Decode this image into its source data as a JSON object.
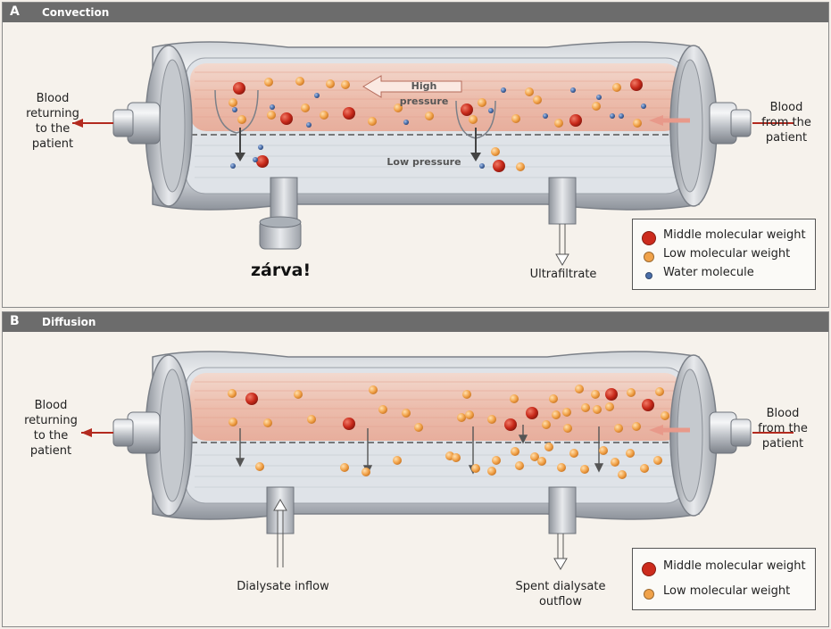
{
  "panel_a": {
    "letter": "A",
    "title": "Convection",
    "label_blood_return": "Blood\nreturning\nto the\npatient",
    "label_blood_from": "Blood\nfrom the\npatient",
    "label_high_pressure": "High pressure",
    "label_low_pressure": "Low pressure",
    "label_closed": "zárva!",
    "label_ultrafiltrate": "Ultrafiltrate",
    "legend": [
      {
        "label": "Middle molecular weight",
        "color": "#cc2b1d"
      },
      {
        "label": "Low molecular weight",
        "color": "#f0a24a"
      },
      {
        "label": "Water molecule",
        "color": "#4a6ea8"
      }
    ]
  },
  "panel_b": {
    "letter": "B",
    "title": "Diffusion",
    "label_blood_return": "Blood\nreturning\nto the\npatient",
    "label_blood_from": "Blood\nfrom the\npatient",
    "label_dialysate_inflow": "Dialysate inflow",
    "label_spent_outflow": "Spent dialysate\noutflow",
    "legend": [
      {
        "label": "Middle molecular weight",
        "color": "#cc2b1d"
      },
      {
        "label": "Low molecular weight",
        "color": "#f0a24a"
      }
    ]
  }
}
